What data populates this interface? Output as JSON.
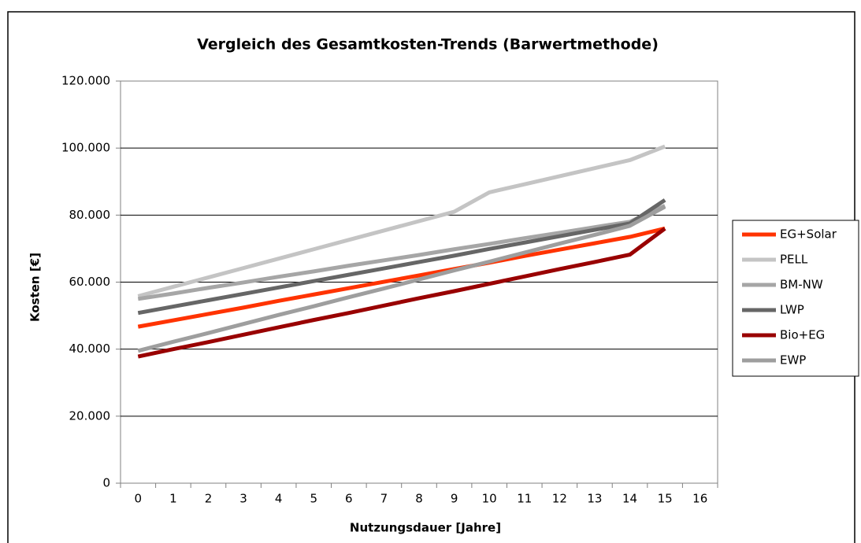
{
  "chart_data": {
    "type": "line",
    "title": "Vergleich des Gesamtkosten-Trends (Barwertmethode)",
    "x_label": "Nutzungsdauer [Jahre]",
    "y_label": "Kosten [€]",
    "x": [
      0,
      1,
      2,
      3,
      4,
      5,
      6,
      7,
      8,
      9,
      10,
      11,
      12,
      13,
      14,
      15,
      16
    ],
    "xlim": [
      -0.5,
      16.5
    ],
    "ylim": [
      0,
      120000
    ],
    "yticks": [
      0,
      {
        "value": 20000,
        "label": "20.000"
      },
      {
        "value": 40000,
        "label": "40.000"
      },
      {
        "value": 60000,
        "label": "60.000"
      },
      {
        "value": 80000,
        "label": "80.000"
      },
      {
        "value": 100000,
        "label": "100.000"
      },
      {
        "value": 120000,
        "label": "120.000"
      }
    ],
    "grid": true,
    "legend": "right",
    "series": [
      {
        "name": "EG+Solar",
        "color": "#ff3300",
        "values": [
          46700,
          48600,
          50500,
          52400,
          54400,
          56300,
          58200,
          60100,
          62000,
          63900,
          65800,
          67800,
          69700,
          71600,
          73500,
          76000,
          null
        ]
      },
      {
        "name": "PELL",
        "color": "#c4c4c4",
        "values": [
          55800,
          58600,
          61400,
          64200,
          67000,
          69800,
          72600,
          75400,
          78200,
          81000,
          86800,
          89200,
          91600,
          94000,
          96400,
          100500,
          null
        ]
      },
      {
        "name": "BM-NW",
        "color": "#a6a6a6",
        "values": [
          55000,
          56600,
          58300,
          59900,
          61600,
          63200,
          64900,
          66500,
          68100,
          69800,
          71400,
          73100,
          74700,
          76400,
          78000,
          82800,
          null
        ]
      },
      {
        "name": "LWP",
        "color": "#666666",
        "values": [
          50800,
          52700,
          54600,
          56500,
          58400,
          60300,
          62200,
          64100,
          66000,
          67900,
          69900,
          71800,
          73700,
          75600,
          77500,
          84500,
          null
        ]
      },
      {
        "name": "Bio+EG",
        "color": "#990000",
        "values": [
          37800,
          40000,
          42100,
          44300,
          46500,
          48700,
          50800,
          53000,
          55200,
          57300,
          59500,
          61700,
          63900,
          66000,
          68200,
          76000,
          null
        ]
      },
      {
        "name": "EWP",
        "color": "#9e9e9e",
        "values": [
          39500,
          42200,
          44800,
          47500,
          50200,
          52800,
          55500,
          58100,
          60800,
          63500,
          66100,
          68800,
          71500,
          74100,
          76800,
          82500,
          null
        ]
      }
    ]
  }
}
